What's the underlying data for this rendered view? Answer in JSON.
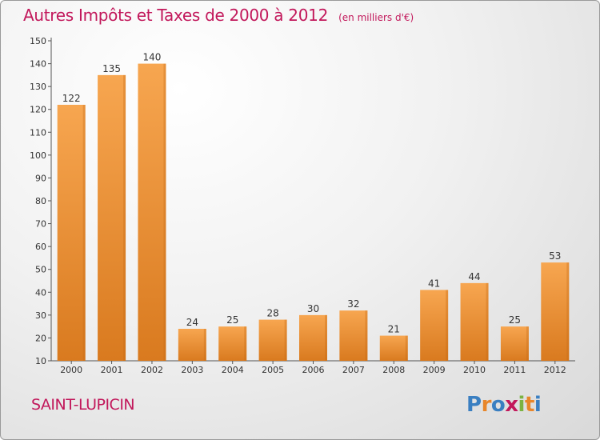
{
  "title": "Autres Impôts et Taxes de 2000 à 2012",
  "subtitle": "(en milliers d'€)",
  "commune": "SAINT-LUPICIN",
  "logo": {
    "text": "Proxiti",
    "letters": [
      "P",
      "r",
      "o",
      "x",
      "i",
      "t",
      "i"
    ],
    "colors": [
      "#3a7fc1",
      "#e8862a",
      "#3a7fc1",
      "#c2185b",
      "#7cb342",
      "#e8862a",
      "#3a7fc1"
    ]
  },
  "colors": {
    "bar_light": "#f7a650",
    "bar_dark": "#d97a1f",
    "accent": "#c2185b",
    "axis": "#555555"
  },
  "chart_data": {
    "type": "bar",
    "title": "Autres Impôts et Taxes de 2000 à 2012",
    "categories": [
      "2000",
      "2001",
      "2002",
      "2003",
      "2004",
      "2005",
      "2006",
      "2007",
      "2008",
      "2009",
      "2010",
      "2011",
      "2012"
    ],
    "values": [
      122,
      135,
      140,
      24,
      25,
      28,
      30,
      32,
      21,
      41,
      44,
      25,
      53
    ],
    "ylim": [
      10,
      150
    ],
    "yticks": [
      10,
      20,
      30,
      40,
      50,
      60,
      70,
      80,
      90,
      100,
      110,
      120,
      130,
      140,
      150
    ],
    "grid": false,
    "xlabel": "",
    "ylabel": ""
  }
}
